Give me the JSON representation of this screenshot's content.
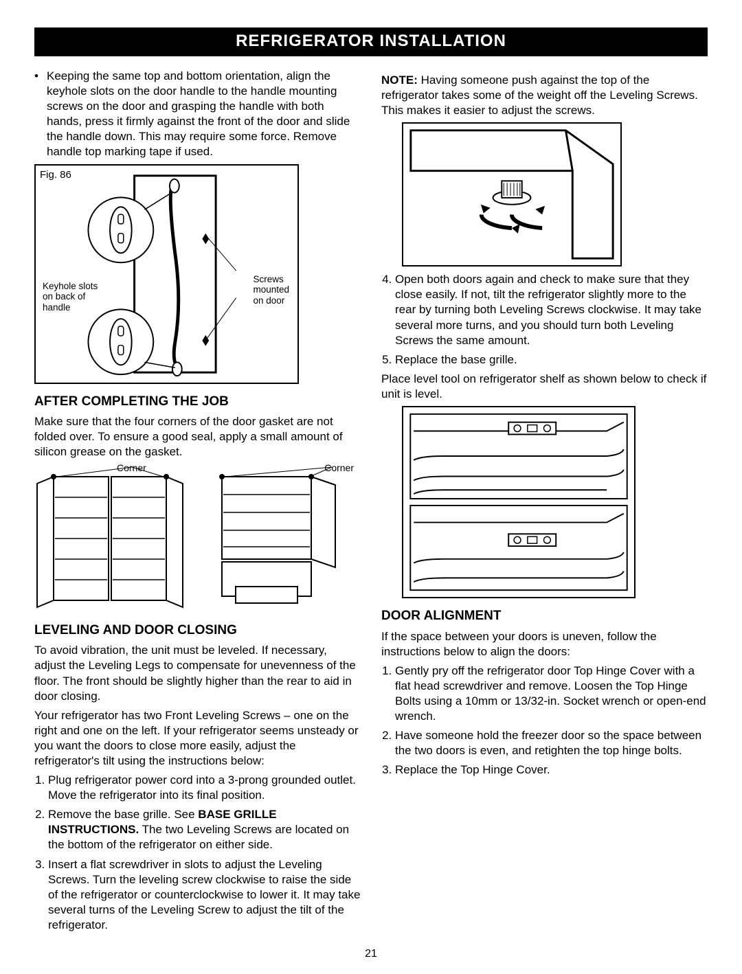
{
  "title": "REFRIGERATOR INSTALLATION",
  "page_number": "21",
  "left": {
    "bullet": "Keeping the same top and bottom orientation, align the keyhole slots on the door handle to the handle mounting screws on the door and grasping the handle with both hands, press it firmly against the front of the door and slide the handle down. This may require some force. Remove handle top marking tape if used.",
    "fig86_label": "Fig. 86",
    "fig86_left_caption_l1": "Keyhole slots",
    "fig86_left_caption_l2": "on back of",
    "fig86_left_caption_l3": "handle",
    "fig86_right_caption_l1": "Screws",
    "fig86_right_caption_l2": "mounted",
    "fig86_right_caption_l3": "on door",
    "after_h": "AFTER COMPLETING THE JOB",
    "after_p": "Make sure that the four corners of the door gasket are not folded over. To ensure a good seal, apply a small amount of silicon grease on the gasket.",
    "corner_left": "Corner",
    "corner_right": "Corner",
    "level_h": "LEVELING AND DOOR CLOSING",
    "level_p1": "To avoid vibration, the unit must be leveled. If necessary, adjust the Leveling Legs to compensate for unevenness of the floor. The front should be slightly higher than the rear to aid in door closing.",
    "level_p2": "Your refrigerator has two Front Leveling Screws – one on the right and one on the left. If your refrigerator seems unsteady or you want the doors to close more easily, adjust the refrigerator's tilt using the instructions below:",
    "level_steps": [
      "Plug refrigerator power cord into a 3-prong grounded outlet. Move the refrigerator into its final position.",
      "Remove the base grille. See <b>BASE GRILLE INSTRUCTIONS.</b> The two Leveling Screws are located on the bottom of the refrigerator on either side.",
      "Insert a flat screwdriver in slots to adjust the Leveling Screws.  Turn the leveling screw clockwise to raise the side of the refrigerator or counterclockwise to lower it. It may take several turns of the Leveling Screw to adjust the tilt of the refrigerator."
    ]
  },
  "right": {
    "note_prefix": "NOTE:",
    "note_body": " Having someone push against the top of the refrigerator takes some of the weight off the Leveling Screws. This makes it easier to adjust the screws.",
    "steps45": [
      "Open both doors again and check to make sure that they close easily.  If not, tilt the refrigerator slightly more to the rear by turning both Leveling Screws clockwise. It may take several more turns, and you should turn both Leveling Screws the same amount.",
      "Replace the base grille."
    ],
    "level_check_p": "Place level tool on refrigerator shelf as shown below to check if unit is level.",
    "door_h": "DOOR ALIGNMENT",
    "door_p": "If the space between your doors is uneven, follow the instructions below to align the doors:",
    "door_steps": [
      "Gently pry off the refrigerator door Top Hinge Cover with a flat head screwdriver and remove. Loosen the Top Hinge Bolts using a 10mm or 13/32-in. Socket wrench or open-end wrench.",
      "Have someone hold the freezer door so the space between the two doors is even, and retighten the top hinge bolts.",
      "Replace the Top Hinge Cover."
    ]
  },
  "colors": {
    "black": "#000000",
    "white": "#ffffff"
  }
}
